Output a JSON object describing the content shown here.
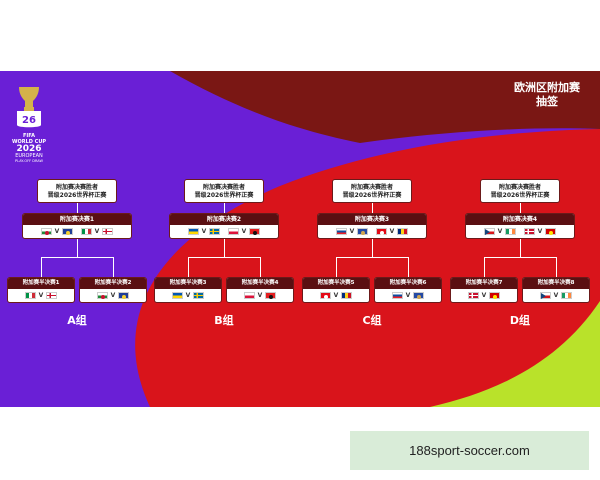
{
  "header": {
    "title_line1": "欧洲区附加赛",
    "title_line2": "抽签"
  },
  "logo": {
    "fifa": "FIFA",
    "line1": "WORLD CUP",
    "line2": "2026",
    "line3": "EUROPEAN",
    "line4": "PLAY-OFF DRAW"
  },
  "colors": {
    "purple": "#6a1fd6",
    "red": "#d9141b",
    "darkred": "#7a1714",
    "lime": "#b9e22a"
  },
  "paths": [
    {
      "winner_line1": "附加赛决赛胜者",
      "winner_line2": "晋级2026世界杯正赛",
      "final": {
        "label": "附加赛决赛1",
        "flags": [
          [
            "Wales",
            "Bosnia"
          ],
          [
            "Italy",
            "Northern Ireland"
          ]
        ]
      },
      "semis": [
        {
          "label": "附加赛半决赛1",
          "home": "Italy",
          "away": "Northern Ireland"
        },
        {
          "label": "附加赛半决赛2",
          "home": "Wales",
          "away": "Bosnia"
        }
      ],
      "group": "A组"
    },
    {
      "winner_line1": "附加赛决赛胜者",
      "winner_line2": "晋级2026世界杯正赛",
      "final": {
        "label": "附加赛决赛2",
        "flags": [
          [
            "Ukraine",
            "Sweden"
          ],
          [
            "Poland",
            "Albania"
          ]
        ]
      },
      "semis": [
        {
          "label": "附加赛半决赛3",
          "home": "Ukraine",
          "away": "Sweden"
        },
        {
          "label": "附加赛半决赛4",
          "home": "Poland",
          "away": "Albania"
        }
      ],
      "group": "B组"
    },
    {
      "winner_line1": "附加赛决赛胜者",
      "winner_line2": "晋级2026世界杯正赛",
      "final": {
        "label": "附加赛决赛3",
        "flags": [
          [
            "Slovakia",
            "Kosovo"
          ],
          [
            "Turkey",
            "Romania"
          ]
        ]
      },
      "semis": [
        {
          "label": "附加赛半决赛5",
          "home": "Turkey",
          "away": "Romania"
        },
        {
          "label": "附加赛半决赛6",
          "home": "Slovakia",
          "away": "Kosovo"
        }
      ],
      "group": "C组"
    },
    {
      "winner_line1": "附加赛决赛胜者",
      "winner_line2": "晋级2026世界杯正赛",
      "final": {
        "label": "附加赛决赛4",
        "flags": [
          [
            "Czechia",
            "Ireland"
          ],
          [
            "Denmark",
            "North Macedonia"
          ]
        ]
      },
      "semis": [
        {
          "label": "附加赛半决赛7",
          "home": "Denmark",
          "away": "North Macedonia"
        },
        {
          "label": "附加赛半决赛8",
          "home": "Czechia",
          "away": "Ireland"
        }
      ],
      "group": "D组"
    }
  ],
  "vs_mark": "V",
  "ad": {
    "text": "188sport-soccer.com"
  }
}
